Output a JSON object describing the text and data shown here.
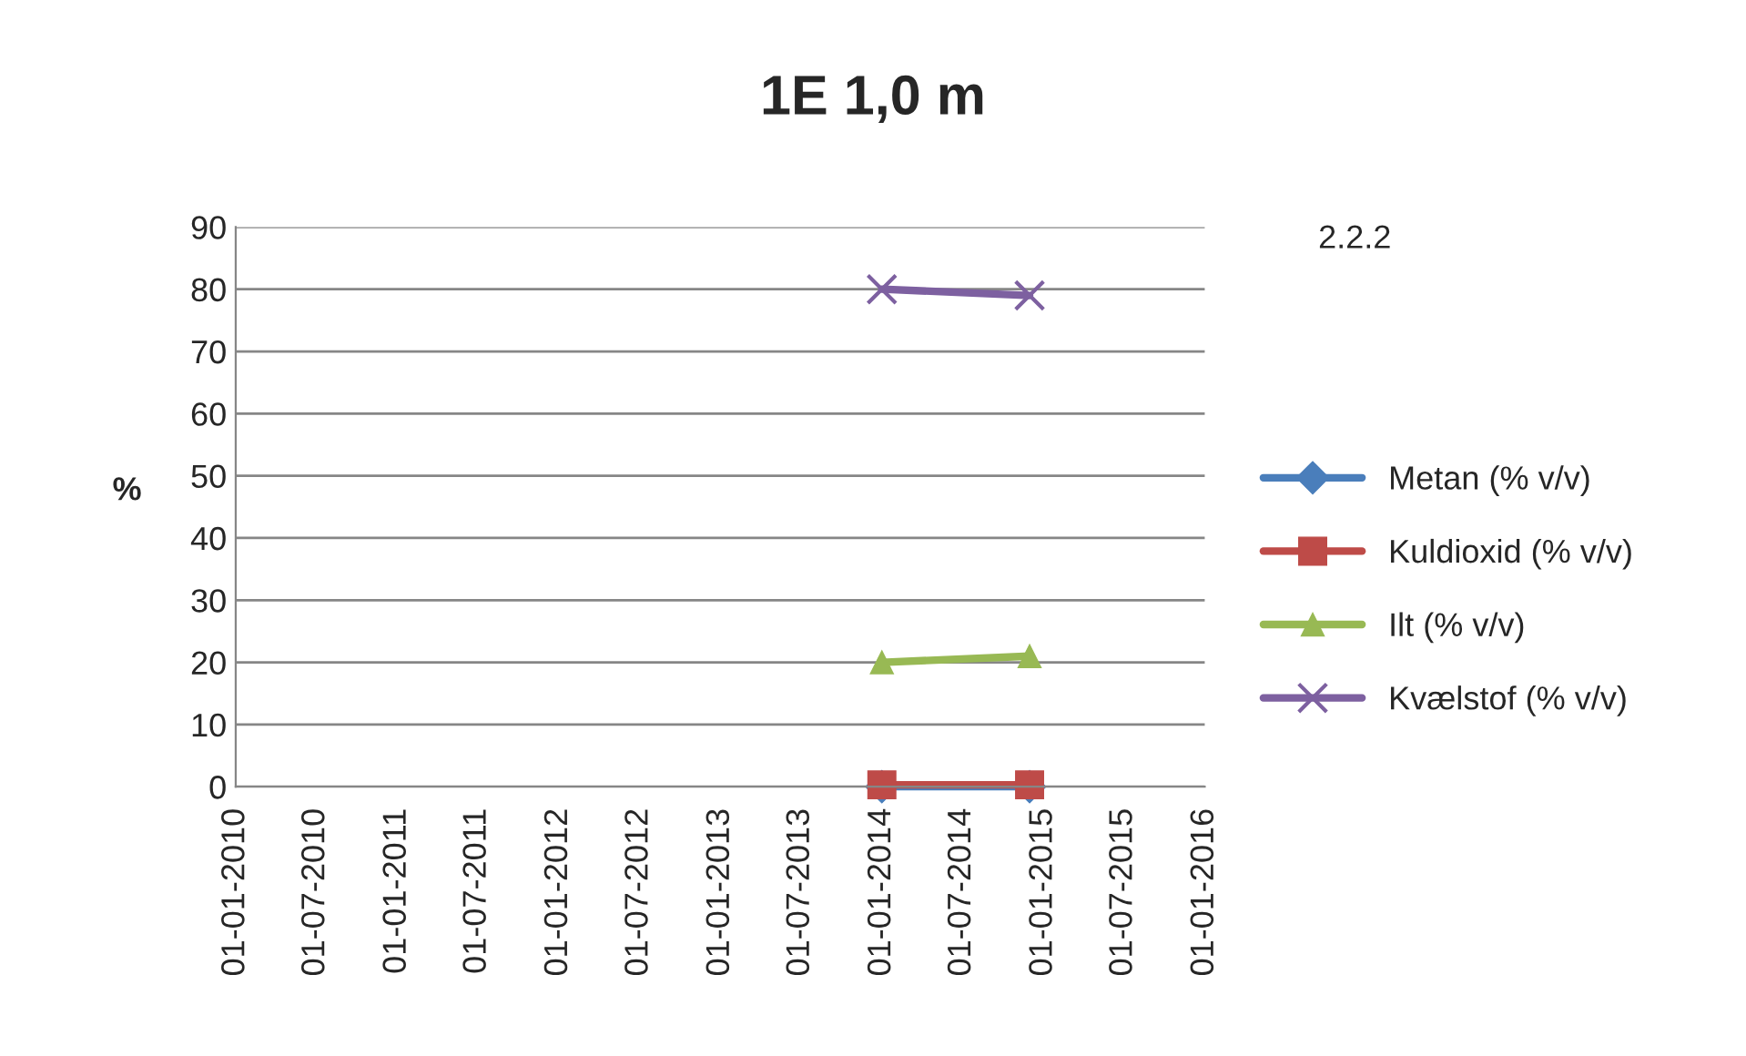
{
  "chart_data": {
    "type": "line",
    "title": "1E 1,0 m",
    "ylabel": "%",
    "annotations": [
      "2.2.2"
    ],
    "x": [
      "2014-01-01",
      "2014-12-01"
    ],
    "series": [
      {
        "name": "Metan (% v/v)",
        "color": "#4a7ebb",
        "marker": "diamond",
        "values": [
          0,
          0
        ]
      },
      {
        "name": "Kuldioxid (% v/v)",
        "color": "#be4b48",
        "marker": "square",
        "values": [
          0.3,
          0.3
        ]
      },
      {
        "name": "Ilt (% v/v)",
        "color": "#98b954",
        "marker": "triangle",
        "values": [
          20,
          21
        ]
      },
      {
        "name": "Kvælstof (% v/v)",
        "color": "#7d60a0",
        "marker": "cross",
        "values": [
          80,
          79
        ]
      }
    ],
    "xlim": [
      "2010-01-01",
      "2016-01-01"
    ],
    "xticks": [
      {
        "value": "2010-01-01",
        "label": "01-01-2010"
      },
      {
        "value": "2010-07-01",
        "label": "01-07-2010"
      },
      {
        "value": "2011-01-01",
        "label": "01-01-2011"
      },
      {
        "value": "2011-07-01",
        "label": "01-07-2011"
      },
      {
        "value": "2012-01-01",
        "label": "01-01-2012"
      },
      {
        "value": "2012-07-01",
        "label": "01-07-2012"
      },
      {
        "value": "2013-01-01",
        "label": "01-01-2013"
      },
      {
        "value": "2013-07-01",
        "label": "01-07-2013"
      },
      {
        "value": "2014-01-01",
        "label": "01-01-2014"
      },
      {
        "value": "2014-07-01",
        "label": "01-07-2014"
      },
      {
        "value": "2015-01-01",
        "label": "01-01-2015"
      },
      {
        "value": "2015-07-01",
        "label": "01-07-2015"
      },
      {
        "value": "2016-01-01",
        "label": "01-01-2016"
      }
    ],
    "ylim": [
      0,
      90
    ],
    "yticks": [
      0,
      10,
      20,
      30,
      40,
      50,
      60,
      70,
      80,
      90
    ],
    "grid": "y",
    "legend": "right",
    "line_style": "solid"
  }
}
